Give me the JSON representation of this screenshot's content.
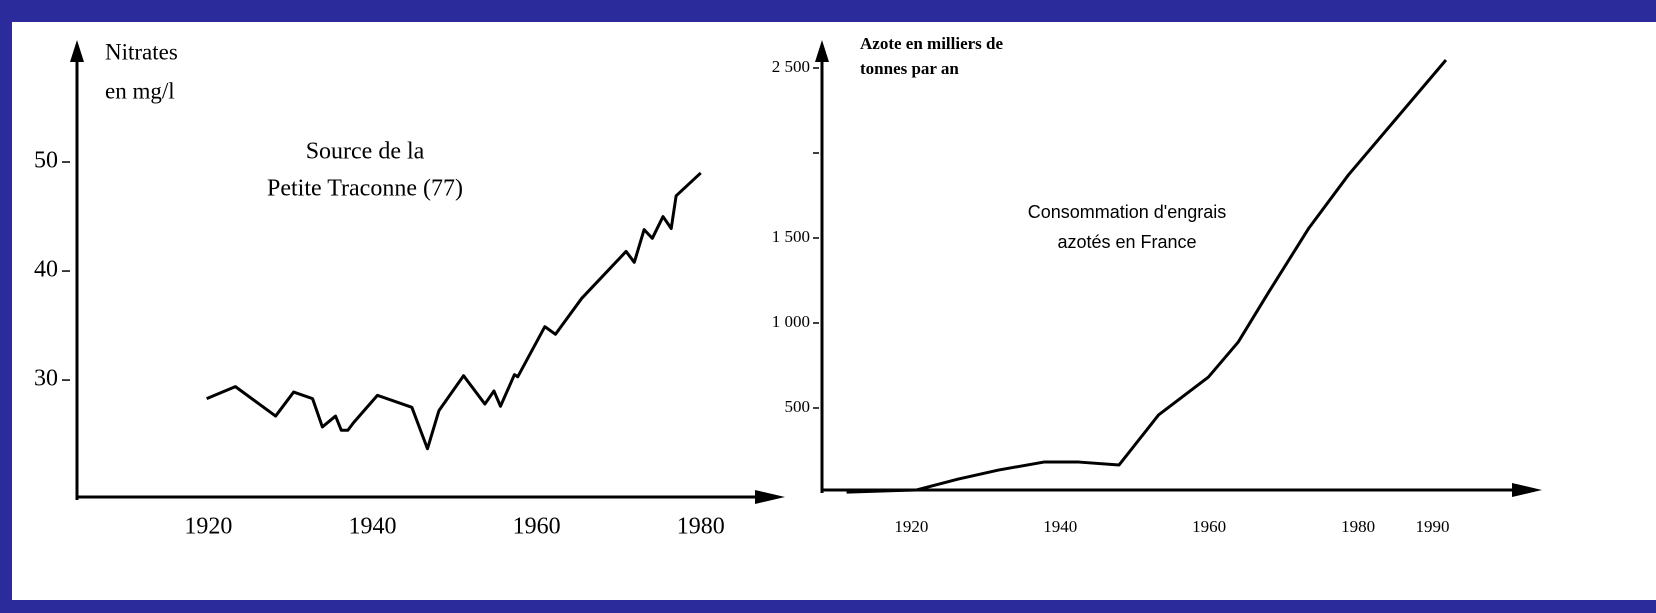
{
  "chart_data": [
    {
      "type": "line",
      "annotation": [
        "Source de la",
        "Petite Traconne (77)"
      ],
      "ylabel": [
        "Nitrates",
        "en mg/l"
      ],
      "x": [
        1919.8,
        1923.3,
        1928.2,
        1930.4,
        1932.7,
        1933.9,
        1935.5,
        1936.2,
        1937,
        1937.7,
        1940.6,
        1944.8,
        1946.7,
        1948.1,
        1951.1,
        1953.7,
        1954.8,
        1955.6,
        1957.3,
        1957.7,
        1961,
        1962.3,
        1965.5,
        1970.9,
        1971.9,
        1973.1,
        1974.1,
        1975.4,
        1976.4,
        1977,
        1980
      ],
      "values": [
        28.3,
        29.4,
        26.7,
        28.9,
        28.3,
        25.7,
        26.7,
        25.4,
        25.4,
        26.1,
        28.6,
        27.5,
        23.7,
        27.2,
        30.4,
        27.8,
        29.0,
        27.6,
        30.5,
        30.3,
        34.9,
        34.2,
        37.5,
        41.8,
        40.8,
        43.8,
        43.0,
        45.0,
        43.9,
        46.9,
        49.0
      ],
      "color": "#000000",
      "xlim": [
        1904,
        1986
      ],
      "xticks": [
        1920,
        1940,
        1960,
        1980
      ],
      "ylim": [
        19,
        60
      ],
      "yticks": [
        30,
        40,
        50
      ]
    },
    {
      "type": "line",
      "annotation": [
        "Consommation d'engrais",
        "azotés en France"
      ],
      "ylabel": [
        "Azote en milliers de",
        "tonnes par an"
      ],
      "x": [
        1911.3,
        1920.7,
        1926.3,
        1931.7,
        1937.8,
        1942.5,
        1947.9,
        1953.2,
        1959.9,
        1963.9,
        1968,
        1973.4,
        1978.7,
        1991.8
      ],
      "values": [
        5,
        18,
        82,
        135,
        182,
        182,
        165,
        459,
        682,
        888,
        1182,
        1559,
        1871,
        2547
      ],
      "color": "#000000",
      "xlim": [
        1908,
        2000
      ],
      "xticks": [
        1920,
        1940,
        1960,
        1980,
        1990
      ],
      "ylim": [
        0,
        2600
      ],
      "yticks": [
        500,
        {
          "value": 1000,
          "label": "1 000"
        },
        {
          "value": 1500,
          "label": "1 500"
        },
        {
          "value": 2000,
          "label": null
        },
        {
          "value": 2500,
          "label": "2 500"
        }
      ]
    }
  ]
}
